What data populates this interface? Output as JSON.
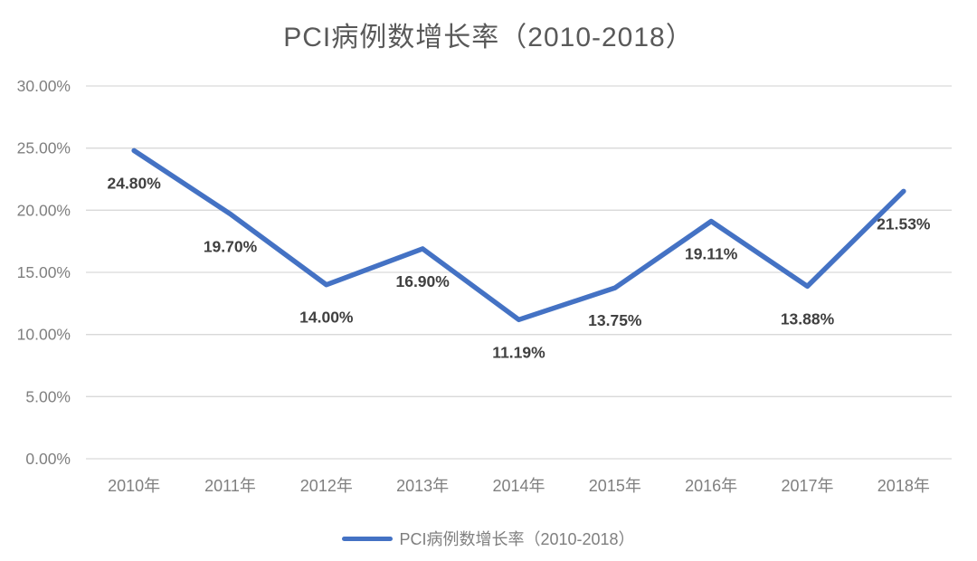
{
  "title": "PCI病例数增长率（2010-2018）",
  "chart_data": {
    "type": "line",
    "title": "PCI病例数增长率（2010-2018）",
    "categories": [
      "2010年",
      "2011年",
      "2012年",
      "2013年",
      "2014年",
      "2015年",
      "2016年",
      "2017年",
      "2018年"
    ],
    "series": [
      {
        "name": "PCI病例数增长率（2010-2018）",
        "values": [
          24.8,
          19.7,
          14.0,
          16.9,
          11.19,
          13.75,
          19.11,
          13.88,
          21.53
        ]
      }
    ],
    "data_labels": [
      "24.80%",
      "19.70%",
      "14.00%",
      "16.90%",
      "11.19%",
      "13.75%",
      "19.11%",
      "13.88%",
      "21.53%"
    ],
    "y_tick_labels": [
      "30.00%",
      "25.00%",
      "20.00%",
      "15.00%",
      "10.00%",
      "5.00%",
      "0.00%"
    ],
    "ylim": [
      0,
      30
    ],
    "y_tick_step": 5,
    "grid": true,
    "legend_position": "bottom",
    "colors": {
      "line": "#4472C4",
      "grid": "#D9D9D9",
      "title": "#595959",
      "axis_labels": "#7F7F7F",
      "data_labels": "#404040"
    }
  },
  "legend": {
    "label": "PCI病例数增长率（2010-2018）"
  }
}
